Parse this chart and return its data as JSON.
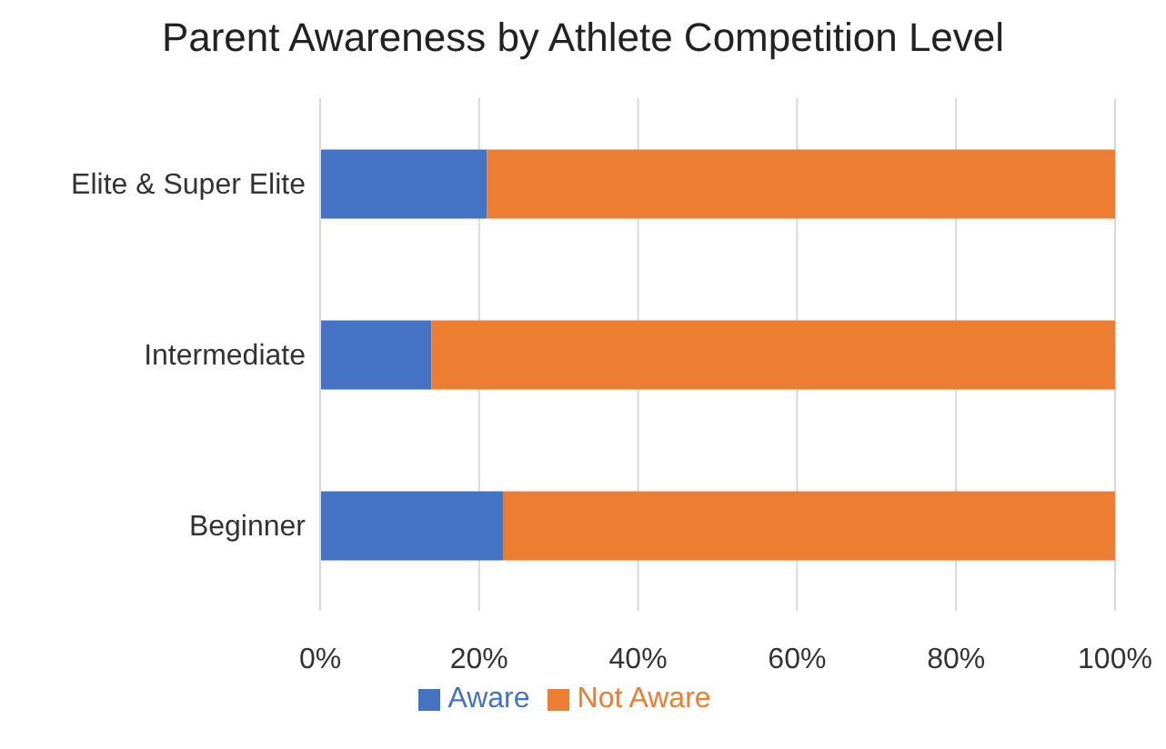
{
  "chart_data": {
    "type": "bar",
    "title": "Parent Awareness by Athlete Competition Level",
    "orientation": "horizontal",
    "stacked": true,
    "categories": [
      "Elite & Super Elite",
      "Intermediate",
      "Beginner"
    ],
    "series": [
      {
        "name": "Aware",
        "color": "#4472c4",
        "values": [
          21,
          14,
          23
        ]
      },
      {
        "name": "Not Aware",
        "color": "#ed7d31",
        "values": [
          79,
          86,
          77
        ]
      }
    ],
    "xlim": [
      0,
      100
    ],
    "xticks": [
      {
        "value": 0,
        "label": "0%"
      },
      {
        "value": 20,
        "label": "20%"
      },
      {
        "value": 40,
        "label": "40%"
      },
      {
        "value": 60,
        "label": "60%"
      },
      {
        "value": 80,
        "label": "80%"
      },
      {
        "value": 100,
        "label": "100%"
      }
    ],
    "grid": "x",
    "legend": "bottom"
  }
}
